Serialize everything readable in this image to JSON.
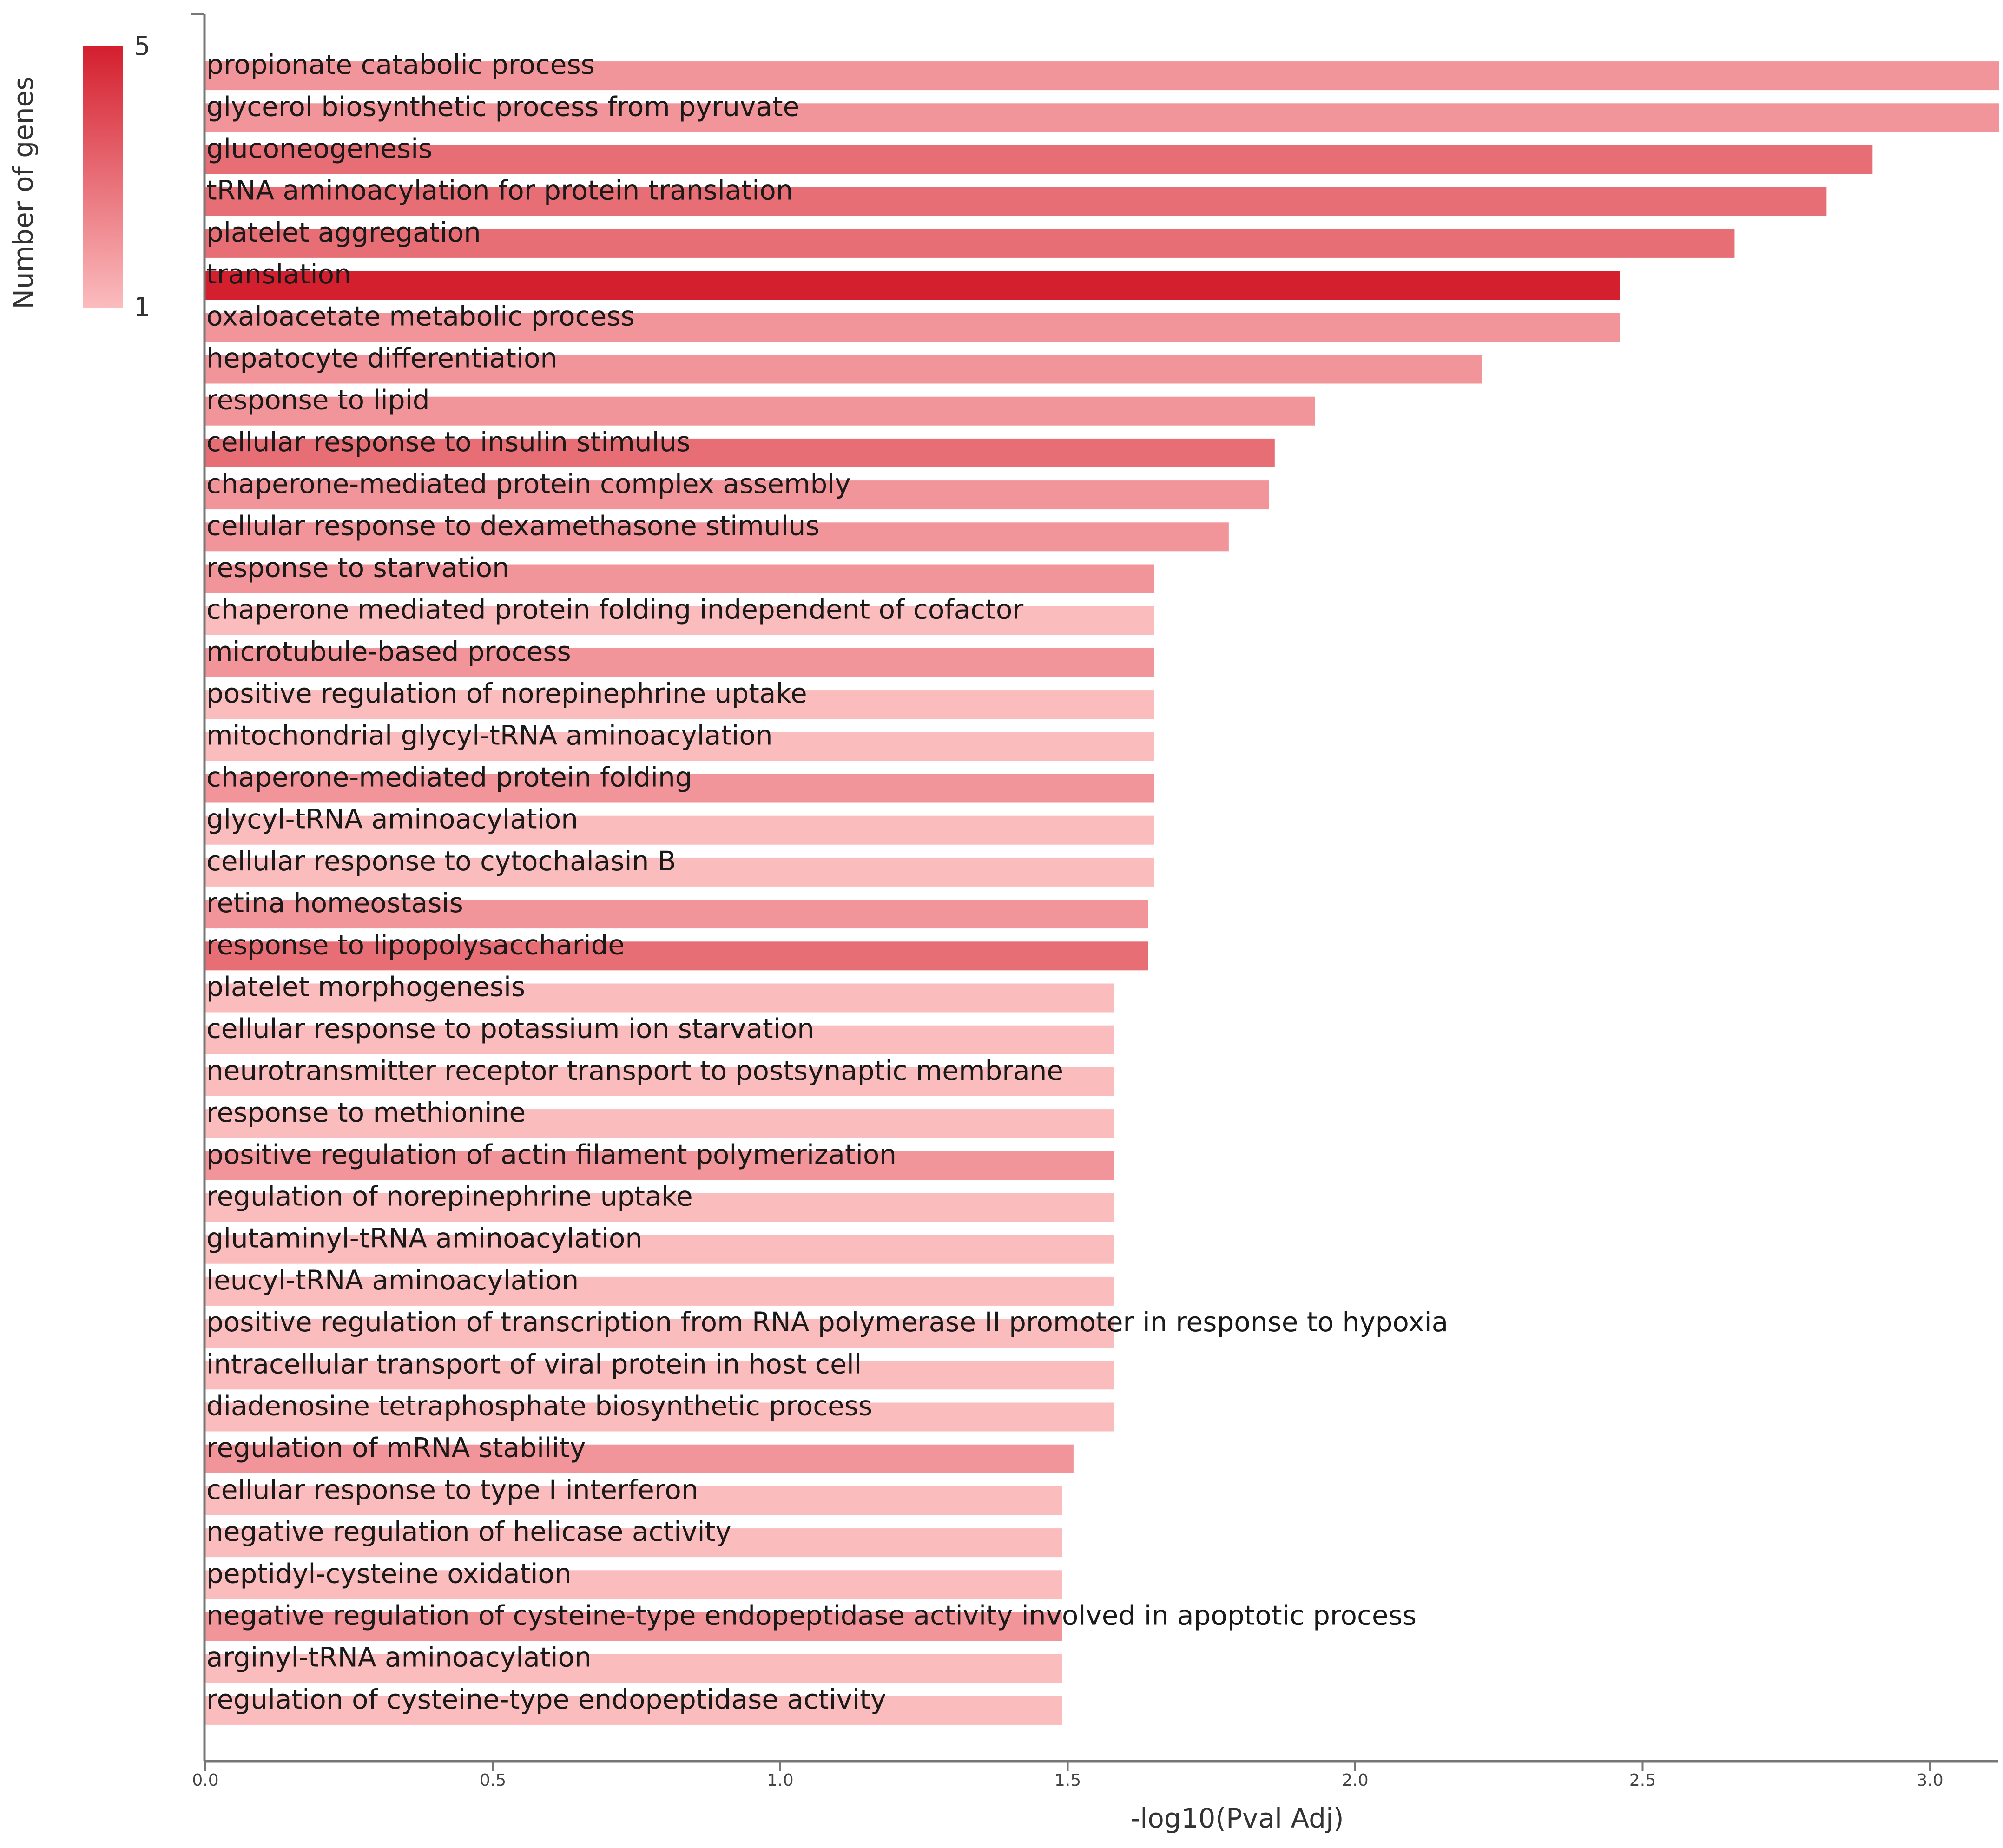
{
  "chart_data": {
    "type": "bar",
    "orientation": "horizontal",
    "title": "",
    "xlabel": "-log10(Pval Adj)",
    "ylabel": "",
    "xlim": [
      0,
      3.12
    ],
    "x_ticks": [
      "0.0",
      "0.5",
      "1.0",
      "1.5",
      "2.0",
      "2.5",
      "3.0"
    ],
    "legend": {
      "title": "Number of genes",
      "min_label": "1",
      "max_label": "5",
      "min": 1,
      "max": 5,
      "color_low": "#fbbcbe",
      "color_high": "#d41f2e"
    },
    "categories": [
      "propionate catabolic process",
      "glycerol biosynthetic process from pyruvate",
      "gluconeogenesis",
      "tRNA aminoacylation for protein translation",
      "platelet aggregation",
      "translation",
      "oxaloacetate metabolic process",
      "hepatocyte differentiation",
      "response to lipid",
      "cellular response to insulin stimulus",
      "chaperone-mediated protein complex assembly",
      "cellular response to dexamethasone stimulus",
      "response to starvation",
      "chaperone mediated protein folding independent of cofactor",
      "microtubule-based process",
      "positive regulation of norepinephrine uptake",
      "mitochondrial glycyl-tRNA aminoacylation",
      "chaperone-mediated protein folding",
      "glycyl-tRNA aminoacylation",
      "cellular response to cytochalasin B",
      "retina homeostasis",
      "response to lipopolysaccharide",
      "platelet morphogenesis",
      "cellular response to potassium ion starvation",
      "neurotransmitter receptor transport to postsynaptic membrane",
      "response to methionine",
      "positive regulation of actin filament polymerization",
      "regulation of norepinephrine uptake",
      "glutaminyl-tRNA aminoacylation",
      "leucyl-tRNA aminoacylation",
      "positive regulation of transcription from RNA polymerase II promoter in response to hypoxia",
      "intracellular transport of viral protein in host cell",
      "diadenosine tetraphosphate biosynthetic process",
      "regulation of mRNA stability",
      "cellular response to type I interferon",
      "negative regulation of helicase activity",
      "peptidyl-cysteine oxidation",
      "negative regulation of cysteine-type endopeptidase activity involved in apoptotic process",
      "arginyl-tRNA aminoacylation",
      "regulation of cysteine-type endopeptidase activity"
    ],
    "values": [
      3.12,
      3.12,
      2.9,
      2.82,
      2.66,
      2.46,
      2.46,
      2.22,
      1.93,
      1.86,
      1.85,
      1.78,
      1.65,
      1.65,
      1.65,
      1.65,
      1.65,
      1.65,
      1.65,
      1.65,
      1.64,
      1.64,
      1.58,
      1.58,
      1.58,
      1.58,
      1.58,
      1.58,
      1.58,
      1.58,
      1.58,
      1.58,
      1.58,
      1.51,
      1.49,
      1.49,
      1.49,
      1.49,
      1.49,
      1.49
    ],
    "gene_counts": [
      2,
      2,
      3,
      3,
      3,
      5,
      2,
      2,
      2,
      3,
      2,
      2,
      2,
      1,
      2,
      1,
      1,
      2,
      1,
      1,
      2,
      3,
      1,
      1,
      1,
      1,
      2,
      1,
      1,
      1,
      1,
      1,
      1,
      2,
      1,
      1,
      1,
      2,
      1,
      1
    ]
  }
}
